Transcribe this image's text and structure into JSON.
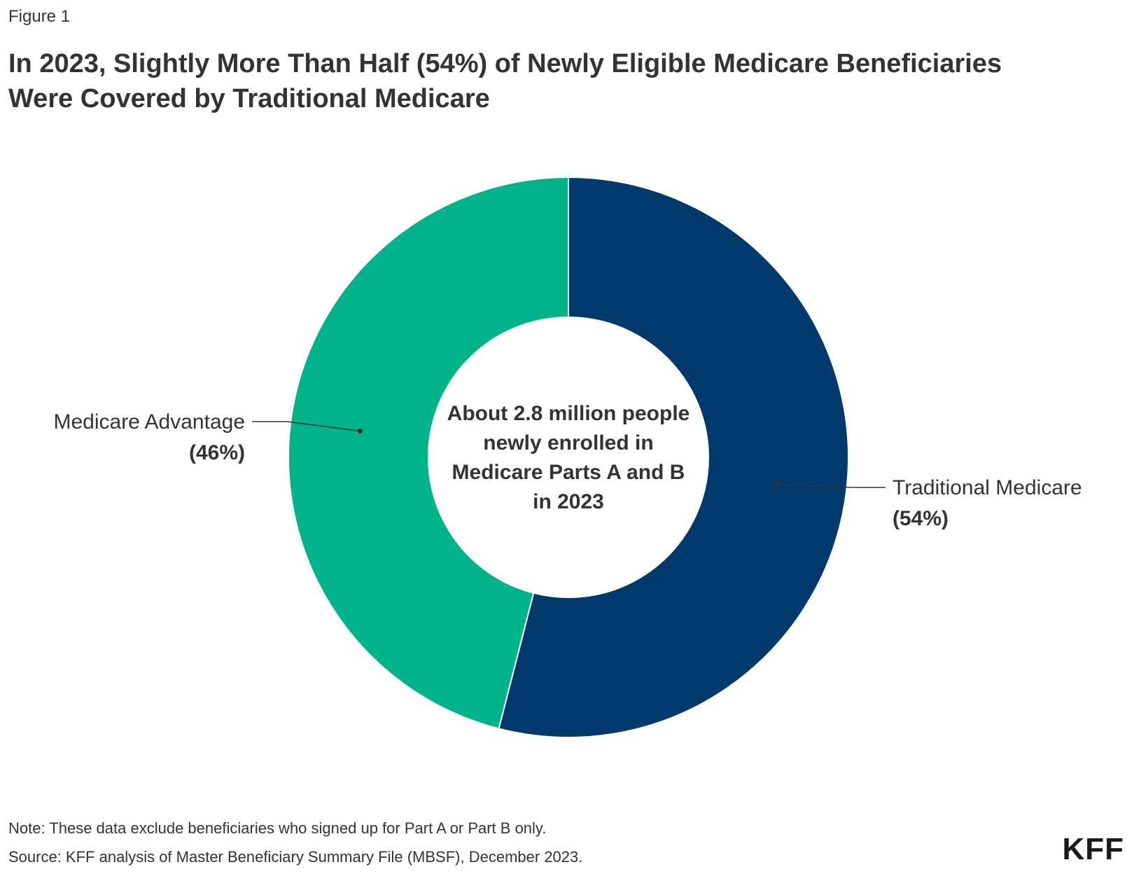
{
  "figure_label": "Figure 1",
  "title_lines": [
    "In 2023, Slightly More Than Half (54%) of Newly Eligible Medicare Beneficiaries",
    "Were Covered by Traditional Medicare"
  ],
  "chart_data": {
    "type": "pie",
    "variant": "donut",
    "slices": [
      {
        "label": "Traditional Medicare",
        "value_label": "(54%)",
        "value": 54,
        "color": "#003A6C"
      },
      {
        "label": "Medicare Advantage",
        "value_label": "(46%)",
        "value": 46,
        "color": "#00B38A"
      }
    ],
    "center_text": [
      "About 2.8 million people",
      "newly enrolled in",
      "Medicare Parts A and B",
      "in 2023"
    ]
  },
  "notes": {
    "note": "Note: These data exclude beneficiaries who signed up for Part A or Part B only.",
    "source": "Source: KFF analysis of Master Beneficiary Summary File (MBSF), December 2023."
  },
  "logo": "KFF"
}
